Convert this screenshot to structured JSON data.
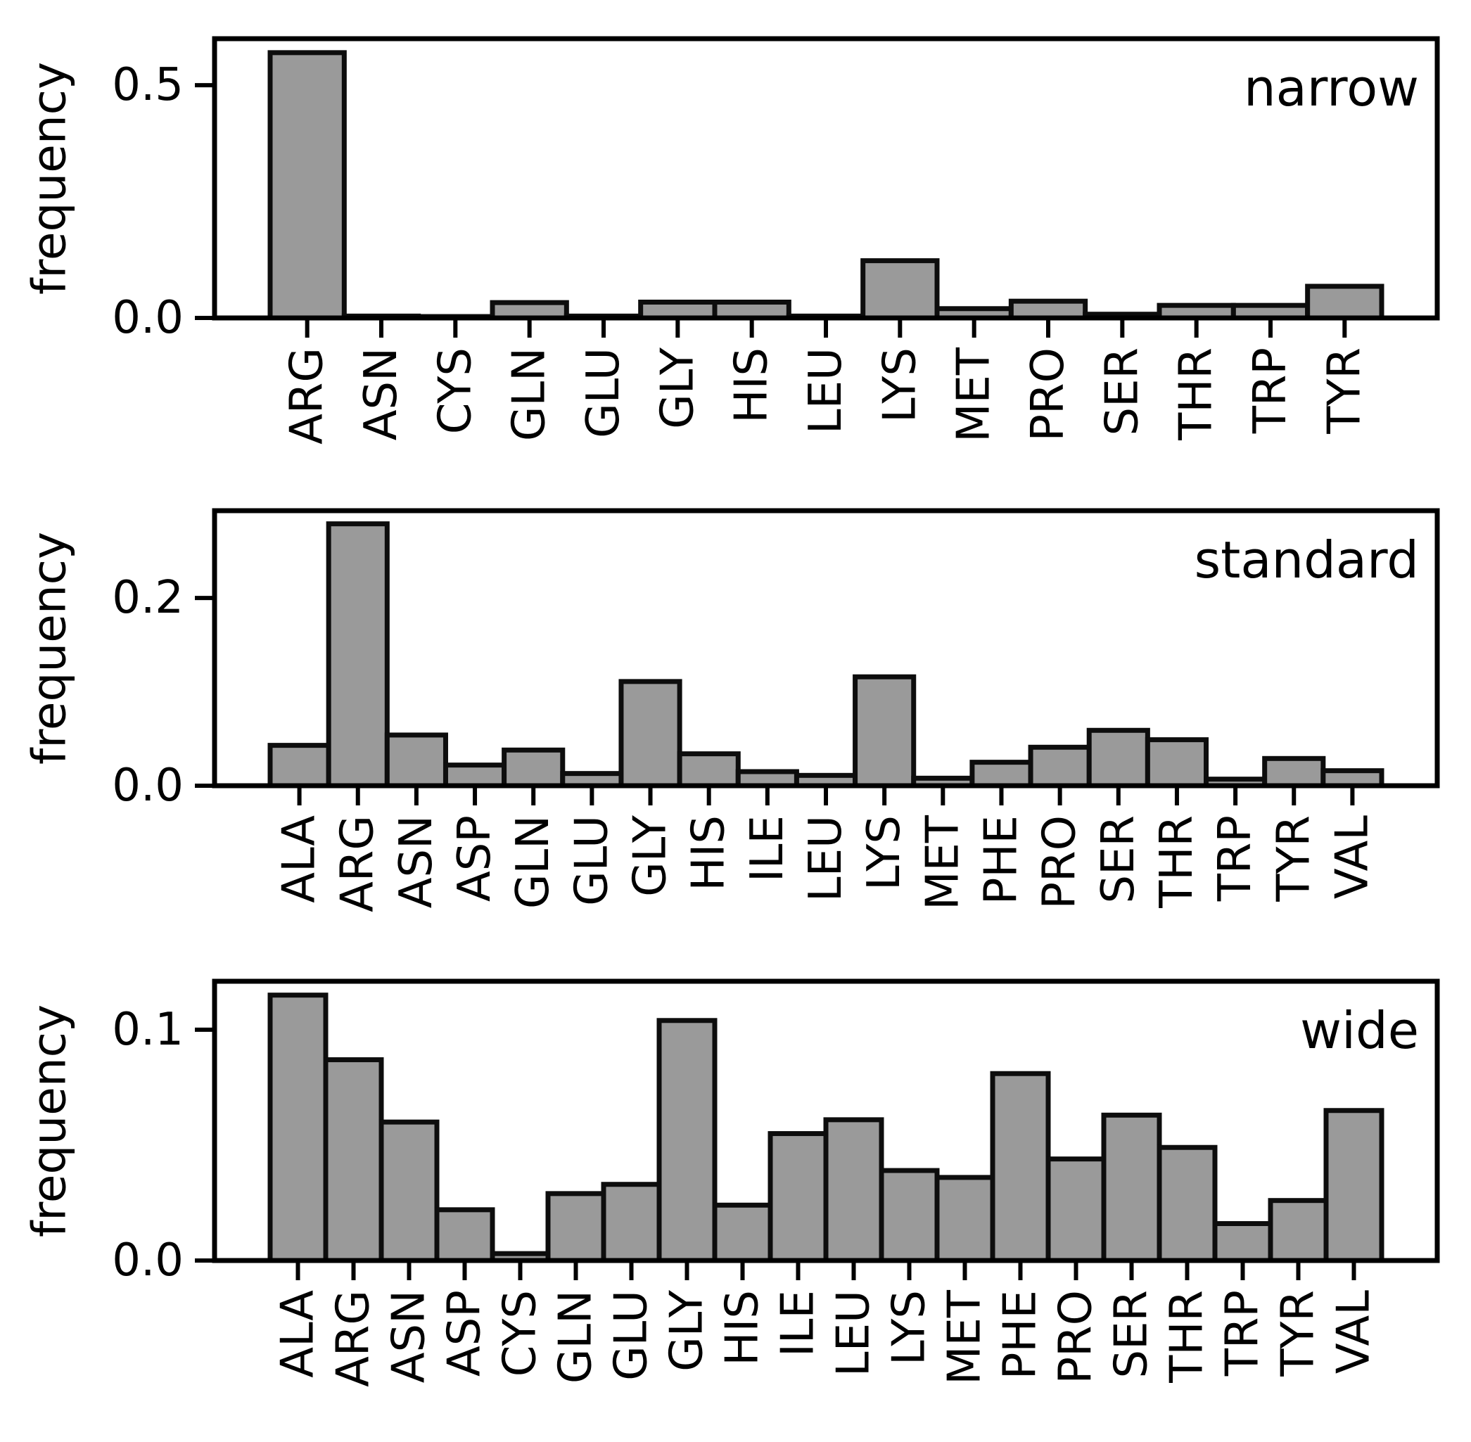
{
  "figure": {
    "background": "#ffffff",
    "bar_fill": "#9a9a9a",
    "bar_edge": "#0d0d0d",
    "axis_color": "#000000"
  },
  "chart_data": [
    {
      "type": "bar",
      "title": "narrow",
      "title_position": "top-right",
      "xlabel": "",
      "ylabel": "frequency",
      "grid": false,
      "legend": false,
      "categories": [
        "ARG",
        "ASN",
        "CYS",
        "GLN",
        "GLU",
        "GLY",
        "HIS",
        "LEU",
        "LYS",
        "MET",
        "PRO",
        "SER",
        "THR",
        "TRP",
        "TYR"
      ],
      "values": [
        0.57,
        0.004,
        0.003,
        0.033,
        0.004,
        0.034,
        0.034,
        0.004,
        0.123,
        0.02,
        0.036,
        0.008,
        0.027,
        0.027,
        0.068
      ],
      "yticks": [
        0.0,
        0.5
      ],
      "ytick_labels": [
        "0.0",
        "0.5"
      ],
      "ylim": [
        0,
        0.6
      ]
    },
    {
      "type": "bar",
      "title": "standard",
      "title_position": "top-right",
      "xlabel": "",
      "ylabel": "frequency",
      "grid": false,
      "legend": false,
      "categories": [
        "ALA",
        "ARG",
        "ASN",
        "ASP",
        "GLN",
        "GLU",
        "GLY",
        "HIS",
        "ILE",
        "LEU",
        "LYS",
        "MET",
        "PHE",
        "PRO",
        "SER",
        "THR",
        "TRP",
        "TYR",
        "VAL"
      ],
      "values": [
        0.043,
        0.279,
        0.054,
        0.022,
        0.038,
        0.013,
        0.111,
        0.034,
        0.015,
        0.011,
        0.116,
        0.008,
        0.025,
        0.041,
        0.059,
        0.049,
        0.007,
        0.029,
        0.016
      ],
      "yticks": [
        0.0,
        0.2
      ],
      "ytick_labels": [
        "0.0",
        "0.2"
      ],
      "ylim": [
        0,
        0.293
      ]
    },
    {
      "type": "bar",
      "title": "wide",
      "title_position": "top-right",
      "xlabel": "",
      "ylabel": "frequency",
      "grid": false,
      "legend": false,
      "categories": [
        "ALA",
        "ARG",
        "ASN",
        "ASP",
        "CYS",
        "GLN",
        "GLU",
        "GLY",
        "HIS",
        "ILE",
        "LEU",
        "LYS",
        "MET",
        "PHE",
        "PRO",
        "SER",
        "THR",
        "TRP",
        "TYR",
        "VAL"
      ],
      "values": [
        0.115,
        0.087,
        0.06,
        0.022,
        0.003,
        0.029,
        0.033,
        0.104,
        0.024,
        0.055,
        0.061,
        0.039,
        0.036,
        0.081,
        0.044,
        0.063,
        0.049,
        0.016,
        0.026,
        0.065
      ],
      "yticks": [
        0.0,
        0.1
      ],
      "ytick_labels": [
        "0.0",
        "0.1"
      ],
      "ylim": [
        0,
        0.121
      ]
    }
  ]
}
